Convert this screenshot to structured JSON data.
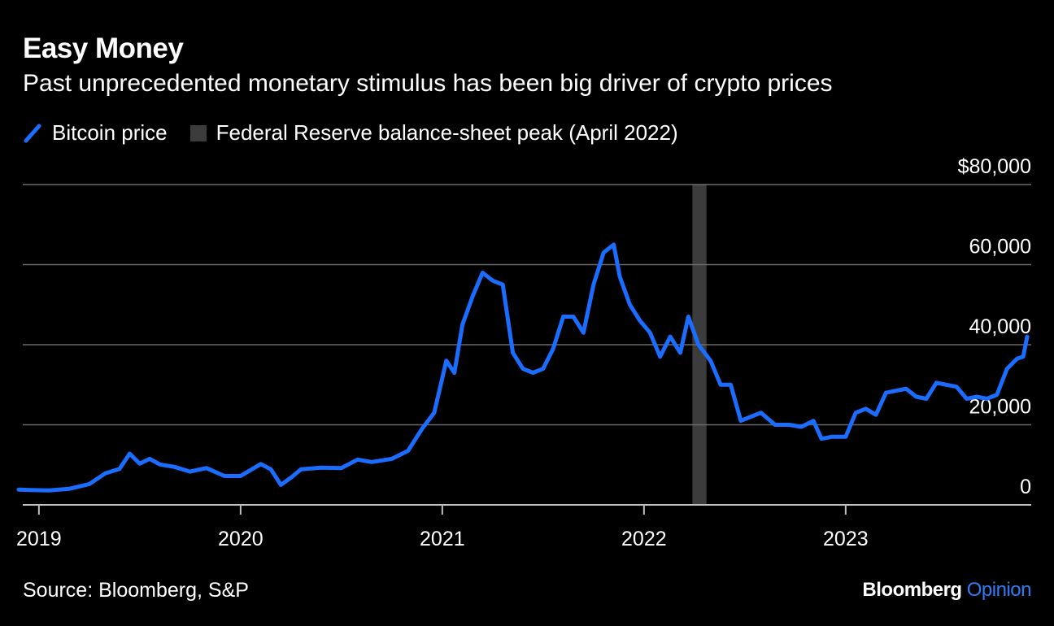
{
  "title": "Easy Money",
  "subtitle": "Past unprecedented monetary stimulus has been big driver of crypto prices",
  "legend": {
    "series_label": "Bitcoin price",
    "band_label": "Federal Reserve balance-sheet peak (April 2022)"
  },
  "source": "Source: Bloomberg, S&P",
  "brand": {
    "name": "Bloomberg",
    "section": "Opinion"
  },
  "colors": {
    "line": "#1a6dff",
    "band": "#3c3c3c",
    "grid": "#6b6b6b",
    "background": "#000000"
  },
  "chart_data": {
    "type": "line",
    "title": "Easy Money",
    "subtitle": "Past unprecedented monetary stimulus has been big driver of crypto prices",
    "xlabel": "",
    "ylabel": "",
    "xlim": [
      2018.92,
      2023.92
    ],
    "ylim": [
      0,
      80000
    ],
    "y_ticks": [
      0,
      20000,
      40000,
      60000,
      80000
    ],
    "y_tick_labels": [
      "0",
      "20,000",
      "40,000",
      "60,000",
      "$80,000"
    ],
    "x_ticks": [
      2019,
      2020,
      2021,
      2022,
      2023
    ],
    "x_tick_labels": [
      "2019",
      "2020",
      "2021",
      "2022",
      "2023"
    ],
    "band": {
      "label": "Federal Reserve balance-sheet peak (April 2022)",
      "x_start": 2022.24,
      "x_end": 2022.31
    },
    "series": [
      {
        "name": "Bitcoin price",
        "x": [
          2018.9,
          2018.96,
          2019.05,
          2019.15,
          2019.25,
          2019.33,
          2019.4,
          2019.45,
          2019.5,
          2019.55,
          2019.6,
          2019.67,
          2019.75,
          2019.83,
          2019.92,
          2020.0,
          2020.1,
          2020.15,
          2020.2,
          2020.25,
          2020.3,
          2020.4,
          2020.5,
          2020.58,
          2020.65,
          2020.75,
          2020.83,
          2020.9,
          2020.96,
          2021.02,
          2021.06,
          2021.1,
          2021.15,
          2021.2,
          2021.25,
          2021.3,
          2021.35,
          2021.4,
          2021.45,
          2021.5,
          2021.55,
          2021.6,
          2021.65,
          2021.7,
          2021.75,
          2021.8,
          2021.85,
          2021.88,
          2021.93,
          2021.98,
          2022.03,
          2022.08,
          2022.13,
          2022.18,
          2022.22,
          2022.27,
          2022.33,
          2022.38,
          2022.43,
          2022.48,
          2022.53,
          2022.58,
          2022.65,
          2022.72,
          2022.78,
          2022.84,
          2022.88,
          2022.93,
          2023.0,
          2023.05,
          2023.1,
          2023.15,
          2023.2,
          2023.25,
          2023.3,
          2023.35,
          2023.4,
          2023.45,
          2023.5,
          2023.55,
          2023.6,
          2023.65,
          2023.7,
          2023.75,
          2023.8,
          2023.85,
          2023.88,
          2023.9
        ],
        "values": [
          3800,
          3700,
          3600,
          4000,
          5200,
          7900,
          9000,
          12800,
          10300,
          11500,
          10100,
          9500,
          8300,
          9200,
          7200,
          7200,
          10200,
          8900,
          5000,
          6800,
          8900,
          9300,
          9200,
          11300,
          10700,
          11500,
          13500,
          19000,
          23000,
          36000,
          33000,
          45000,
          52000,
          58000,
          56000,
          55000,
          38000,
          34000,
          33000,
          34000,
          39000,
          47000,
          47000,
          43000,
          55000,
          63000,
          65000,
          57000,
          50000,
          46000,
          43000,
          37000,
          42000,
          38000,
          47000,
          40000,
          36000,
          30000,
          30000,
          21000,
          22000,
          23000,
          20000,
          20000,
          19500,
          21000,
          16500,
          17000,
          17000,
          23000,
          24000,
          22500,
          28000,
          28500,
          29000,
          27000,
          26500,
          30500,
          30000,
          29500,
          26500,
          27000,
          26500,
          27500,
          34000,
          36500,
          37000,
          42000
        ]
      }
    ]
  }
}
